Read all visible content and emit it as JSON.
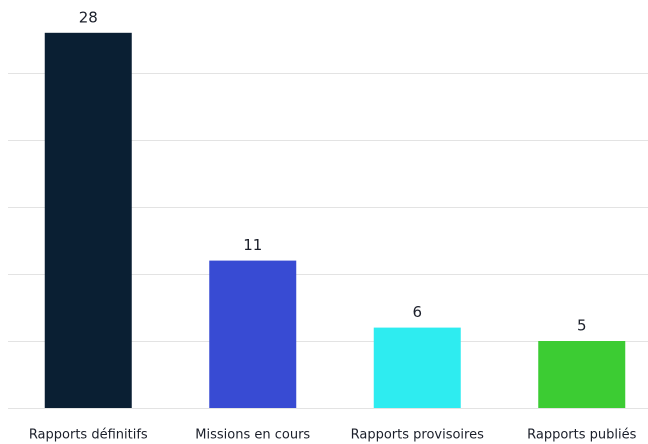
{
  "chart_data": {
    "type": "bar",
    "categories": [
      "Rapports définitifs",
      "Missions en cours",
      "Rapports provisoires",
      "Rapports publiés"
    ],
    "values": [
      28,
      11,
      6,
      5
    ],
    "colors": [
      "#0a1f33",
      "#384bd3",
      "#2eecf0",
      "#3ccc33"
    ],
    "ylim": [
      0,
      30
    ],
    "yticks": [
      0,
      5,
      10,
      15,
      20,
      25
    ],
    "grid": true
  }
}
